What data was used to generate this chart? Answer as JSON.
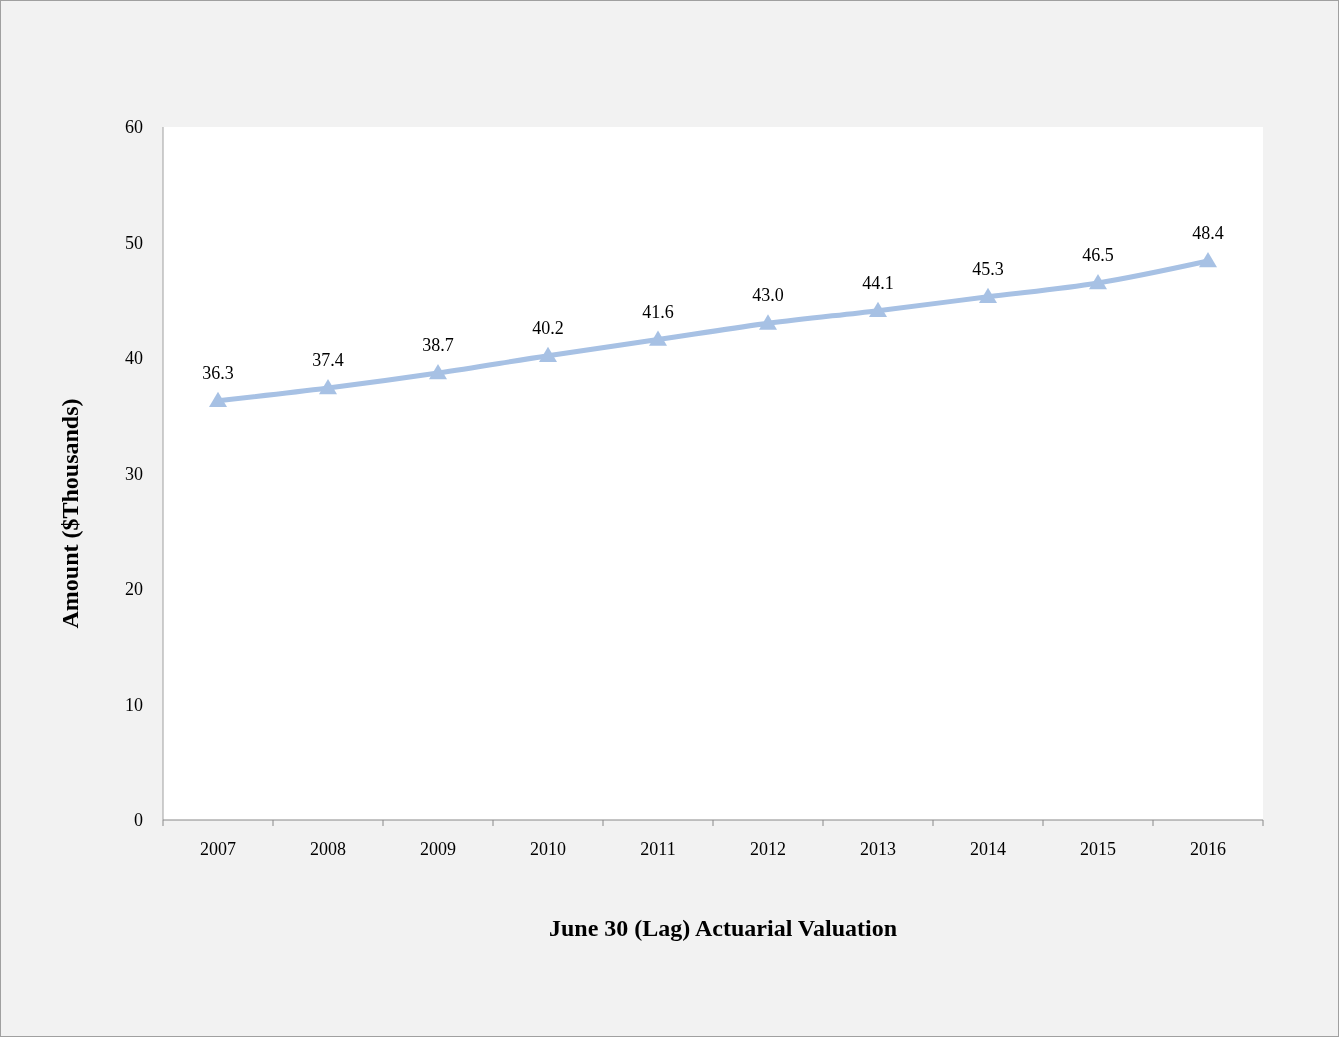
{
  "chart_data": {
    "type": "line",
    "xlabel": "June 30 (Lag) Actuarial Valuation",
    "ylabel": "Amount ($Thousands)",
    "categories": [
      "2007",
      "2008",
      "2009",
      "2010",
      "2011",
      "2012",
      "2013",
      "2014",
      "2015",
      "2016"
    ],
    "series": [
      {
        "color": "#a7c1e4",
        "values": [
          36.3,
          37.4,
          38.7,
          40.2,
          41.6,
          43.0,
          44.1,
          45.3,
          46.5,
          48.4
        ],
        "value_labels": [
          "36.3",
          "37.4",
          "38.7",
          "40.2",
          "41.6",
          "43.0",
          "44.1",
          "45.3",
          "46.5",
          "48.4"
        ]
      }
    ],
    "ylim": [
      0,
      60
    ],
    "yticks": [
      0,
      10,
      20,
      30,
      40,
      50,
      60
    ],
    "grid": false,
    "marker": "triangle",
    "line_style": "solid"
  }
}
